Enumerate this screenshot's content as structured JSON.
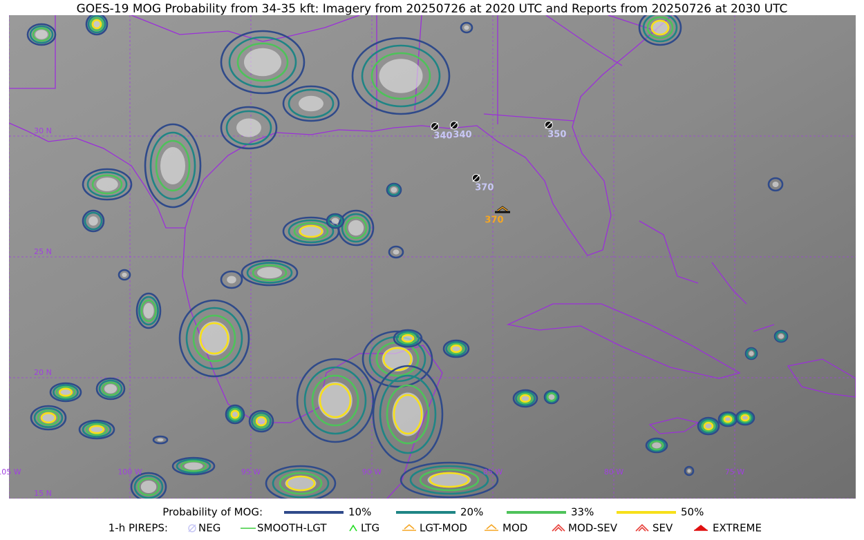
{
  "title": "GOES-19 MOG Probability from 34-35 kft: Imagery from 20250726 at 2020 UTC and Reports from 20250726 at 2030 UTC",
  "map": {
    "lat_lines": [
      {
        "value": 30,
        "label": "30 N"
      },
      {
        "value": 25,
        "label": "25 N"
      },
      {
        "value": 20,
        "label": "20 N"
      },
      {
        "value": 15,
        "label": "15 N"
      }
    ],
    "lon_lines": [
      {
        "value": -105,
        "label": "105 W"
      },
      {
        "value": -100,
        "label": "100 W"
      },
      {
        "value": -95,
        "label": "95 W"
      },
      {
        "value": -90,
        "label": "90 W"
      },
      {
        "value": -85,
        "label": "85 W"
      },
      {
        "value": -80,
        "label": "80 W"
      },
      {
        "value": -75,
        "label": "75 W"
      }
    ]
  },
  "pireps": [
    {
      "type": "NEG",
      "lat": 30.4,
      "lon": -87.4,
      "altitude": 340,
      "color": "#c8c8f5"
    },
    {
      "type": "NEG",
      "lat": 30.45,
      "lon": -86.6,
      "altitude": 340,
      "color": "#c8c8f5"
    },
    {
      "type": "NEG",
      "lat": 30.46,
      "lon": -82.69,
      "altitude": 350,
      "color": "#c8c8f5"
    },
    {
      "type": "NEG",
      "lat": 28.26,
      "lon": -85.69,
      "altitude": 370,
      "color": "#c8c8f5"
    },
    {
      "type": "MOD",
      "lat": 26.91,
      "lon": -84.6,
      "altitude": 370,
      "color": "#f5a623"
    }
  ],
  "legend": {
    "mog_title": "Probability of MOG:",
    "mog": [
      {
        "label": "10%",
        "color": "#2f4a8a"
      },
      {
        "label": "20%",
        "color": "#1f8585"
      },
      {
        "label": "33%",
        "color": "#4ec25a"
      },
      {
        "label": "50%",
        "color": "#f7e01a"
      }
    ],
    "pirep_title": "1-h PIREPS:",
    "pireps": [
      {
        "label": "NEG",
        "color": "#c8c8f5"
      },
      {
        "label": "SMOOTH-LGT",
        "color": "#3dcc3d"
      },
      {
        "label": "LTG",
        "color": "#22dd22"
      },
      {
        "label": "LGT-MOD",
        "color": "#f5a623"
      },
      {
        "label": "MOD",
        "color": "#f5a623"
      },
      {
        "label": "MOD-SEV",
        "color": "#e8403a"
      },
      {
        "label": "SEV",
        "color": "#e8403a"
      },
      {
        "label": "EXTREME",
        "color": "#e01010"
      }
    ]
  }
}
